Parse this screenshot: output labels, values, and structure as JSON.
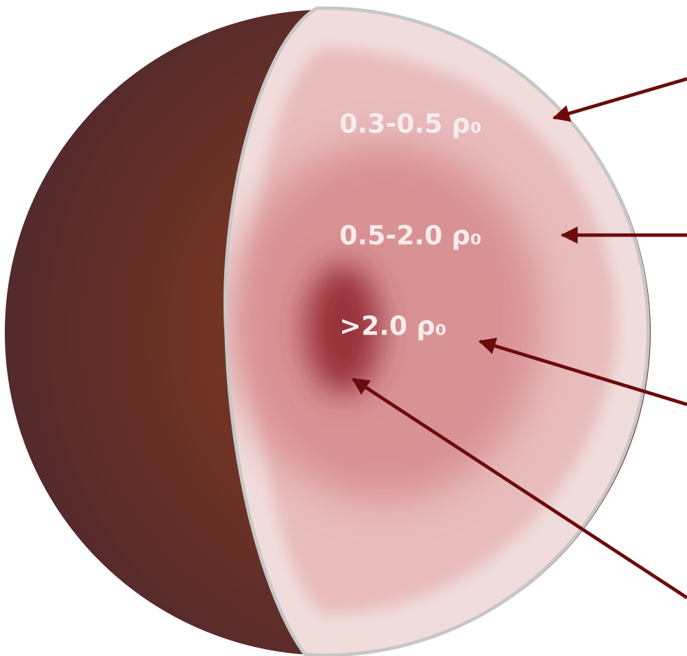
{
  "labels": [
    "0.3-0.5 ρ₀",
    "0.5-2.0 ρ₀",
    ">2.0 ρ₀"
  ]
}
